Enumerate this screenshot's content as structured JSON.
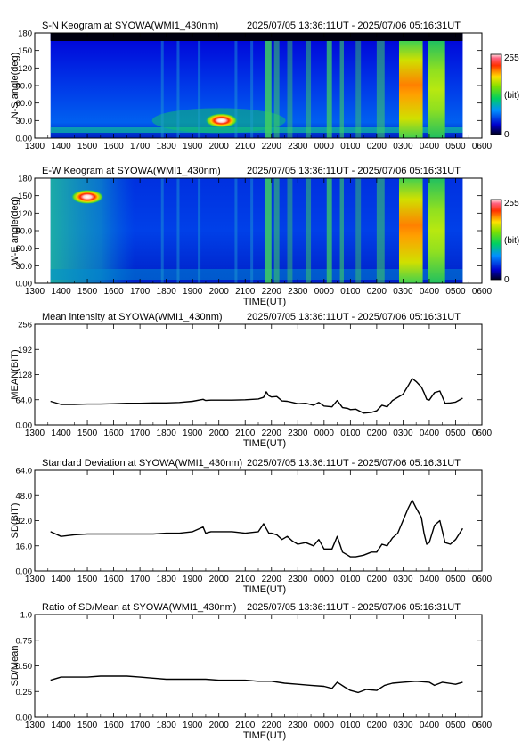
{
  "chart_data": [
    {
      "type": "heatmap",
      "title": "S-N Keogram at SYOWA(WMI1_430nm)",
      "time_range": "2025/07/05 13:36:11UT - 2025/07/06 05:16:31UT",
      "xlabel": "",
      "ylabel": "N-S angle(deg)",
      "x_ticks": [
        "1300",
        "1400",
        "1500",
        "1600",
        "1700",
        "1800",
        "1900",
        "2000",
        "2100",
        "2200",
        "2300",
        "0000",
        "0100",
        "0200",
        "0300",
        "0400",
        "0500",
        "0600"
      ],
      "y_ticks": [
        "0.00",
        "30.0",
        "60.0",
        "90.0",
        "120",
        "150",
        "180"
      ],
      "ylim": [
        0,
        180
      ],
      "colorbar": {
        "min_label": "0",
        "max_label": "255",
        "unit": "(bit)"
      },
      "data_start_hour": 13.6,
      "data_end_hour": 29.27,
      "features": [
        {
          "x_hour": 20.1,
          "y_deg": 30,
          "intensity": 255
        },
        {
          "x_hour": 27.3,
          "y_deg": 100,
          "intensity": 220
        },
        {
          "x_hour": 28.3,
          "y_deg": 100,
          "intensity": 150
        }
      ]
    },
    {
      "type": "heatmap",
      "title": "E-W Keogram at SYOWA(WMI1_430nm)",
      "time_range": "2025/07/05 13:36:11UT - 2025/07/06 05:16:31UT",
      "xlabel": "TIME(UT)",
      "ylabel": "W-E angle(deg)",
      "x_ticks": [
        "1300",
        "1400",
        "1500",
        "1600",
        "1700",
        "1800",
        "1900",
        "2000",
        "2100",
        "2200",
        "2300",
        "0000",
        "0100",
        "0200",
        "0300",
        "0400",
        "0500",
        "0600"
      ],
      "y_ticks": [
        "0.00",
        "30.0",
        "60.0",
        "90.0",
        "120",
        "150",
        "180"
      ],
      "ylim": [
        0,
        180
      ],
      "colorbar": {
        "min_label": "0",
        "max_label": "255",
        "unit": "(bit)"
      },
      "data_start_hour": 13.6,
      "data_end_hour": 29.27,
      "features": [
        {
          "x_hour": 15.0,
          "y_deg": 148,
          "intensity": 255
        },
        {
          "x_hour": 27.3,
          "y_deg": 100,
          "intensity": 220
        },
        {
          "x_hour": 28.3,
          "y_deg": 100,
          "intensity": 150
        }
      ]
    },
    {
      "type": "line",
      "title": "Mean intensity at SYOWA(WMI1_430nm)",
      "time_range": "2025/07/05 13:36:11UT - 2025/07/06 05:16:31UT",
      "xlabel": "TIME(UT)",
      "ylabel": "MEAN(BIT)",
      "x_ticks": [
        "1300",
        "1400",
        "1500",
        "1600",
        "1700",
        "1800",
        "1900",
        "2000",
        "2100",
        "2200",
        "2300",
        "0000",
        "0100",
        "0200",
        "0300",
        "0400",
        "0500",
        "0600"
      ],
      "y_ticks": [
        "0.00",
        "64.0",
        "128",
        "192",
        "256"
      ],
      "ylim": [
        0,
        256
      ],
      "xlim": [
        13,
        30
      ],
      "x": [
        13.6,
        14,
        14.5,
        15,
        15.5,
        16,
        16.5,
        17,
        17.5,
        18,
        18.5,
        19,
        19.4,
        19.5,
        19.7,
        20,
        20.5,
        21,
        21.5,
        21.7,
        21.8,
        21.9,
        22,
        22.2,
        22.4,
        22.6,
        22.8,
        23,
        23.3,
        23.6,
        23.8,
        24,
        24.3,
        24.5,
        24.7,
        24.9,
        25,
        25.2,
        25.5,
        25.8,
        26,
        26.2,
        26.4,
        26.6,
        26.8,
        27,
        27.2,
        27.35,
        27.5,
        27.7,
        27.8,
        27.9,
        28,
        28.2,
        28.4,
        28.6,
        28.8,
        29,
        29.27
      ],
      "y": [
        60,
        52,
        52,
        53,
        53,
        54,
        55,
        55,
        56,
        56,
        57,
        60,
        65,
        62,
        63,
        63,
        63,
        64,
        66,
        70,
        84,
        74,
        71,
        72,
        61,
        60,
        57,
        54,
        55,
        50,
        57,
        48,
        46,
        62,
        44,
        42,
        39,
        40,
        30,
        32,
        36,
        50,
        46,
        62,
        70,
        78,
        100,
        118,
        110,
        96,
        82,
        65,
        63,
        82,
        86,
        55,
        56,
        58,
        68
      ]
    },
    {
      "type": "line",
      "title": "Standard Deviation at SYOWA(WMI1_430nm)",
      "time_range": "2025/07/05 13:36:11UT - 2025/07/06 05:16:31UT",
      "xlabel": "TIME(UT)",
      "ylabel": "SD(BIT)",
      "x_ticks": [
        "1300",
        "1400",
        "1500",
        "1600",
        "1700",
        "1800",
        "1900",
        "2000",
        "2100",
        "2200",
        "2300",
        "0000",
        "0100",
        "0200",
        "0300",
        "0400",
        "0500",
        "0600"
      ],
      "y_ticks": [
        "0.00",
        "16.0",
        "32.0",
        "48.0",
        "64.0"
      ],
      "ylim": [
        0,
        64
      ],
      "xlim": [
        13,
        30
      ],
      "x": [
        13.6,
        14,
        14.5,
        15,
        15.5,
        16,
        16.5,
        17,
        17.5,
        18,
        18.5,
        19,
        19.4,
        19.5,
        19.7,
        20,
        20.5,
        21,
        21.5,
        21.7,
        21.8,
        21.9,
        22,
        22.2,
        22.4,
        22.6,
        22.8,
        23,
        23.3,
        23.6,
        23.8,
        24,
        24.3,
        24.5,
        24.7,
        24.9,
        25,
        25.2,
        25.5,
        25.8,
        26,
        26.2,
        26.4,
        26.6,
        26.8,
        27,
        27.2,
        27.35,
        27.5,
        27.7,
        27.8,
        27.9,
        28,
        28.2,
        28.4,
        28.6,
        28.8,
        29,
        29.27
      ],
      "y": [
        25,
        22,
        23,
        23.5,
        23.5,
        23.5,
        23.5,
        23.5,
        23.5,
        24,
        24,
        25,
        28,
        24,
        25,
        25,
        25,
        24,
        25,
        30,
        27,
        24,
        24,
        23,
        20,
        22,
        19,
        17,
        18,
        16,
        20,
        14,
        14,
        22,
        12,
        10,
        9,
        9,
        10,
        12,
        12,
        17,
        16,
        21,
        24,
        32,
        40,
        45,
        40,
        34,
        24,
        17,
        18,
        29,
        32,
        18,
        17,
        20,
        27
      ]
    },
    {
      "type": "line",
      "title": "Ratio of SD/Mean at SYOWA(WMI1_430nm)",
      "time_range": "2025/07/05 13:36:11UT - 2025/07/06 05:16:31UT",
      "xlabel": "TIME(UT)",
      "ylabel": "SD/Mean",
      "x_ticks": [
        "1300",
        "1400",
        "1500",
        "1600",
        "1700",
        "1800",
        "1900",
        "2000",
        "2100",
        "2200",
        "2300",
        "0000",
        "0100",
        "0200",
        "0300",
        "0400",
        "0500",
        "0600"
      ],
      "y_ticks": [
        "0.00",
        "0.25",
        "0.50",
        "0.75",
        "1.0"
      ],
      "ylim": [
        0,
        1
      ],
      "xlim": [
        13,
        30
      ],
      "x": [
        13.6,
        14,
        14.5,
        15,
        15.5,
        16,
        16.5,
        17,
        17.5,
        18,
        18.5,
        19,
        19.5,
        20,
        20.5,
        21,
        21.5,
        22,
        22.5,
        23,
        23.5,
        24,
        24.3,
        24.5,
        24.8,
        25,
        25.3,
        25.6,
        26,
        26.3,
        26.6,
        27,
        27.5,
        28,
        28.2,
        28.5,
        29,
        29.27
      ],
      "y": [
        0.36,
        0.39,
        0.39,
        0.39,
        0.4,
        0.4,
        0.4,
        0.39,
        0.38,
        0.37,
        0.37,
        0.37,
        0.37,
        0.36,
        0.36,
        0.36,
        0.35,
        0.35,
        0.33,
        0.32,
        0.31,
        0.3,
        0.28,
        0.34,
        0.29,
        0.26,
        0.24,
        0.27,
        0.26,
        0.31,
        0.33,
        0.34,
        0.35,
        0.34,
        0.31,
        0.34,
        0.32,
        0.34
      ]
    }
  ]
}
